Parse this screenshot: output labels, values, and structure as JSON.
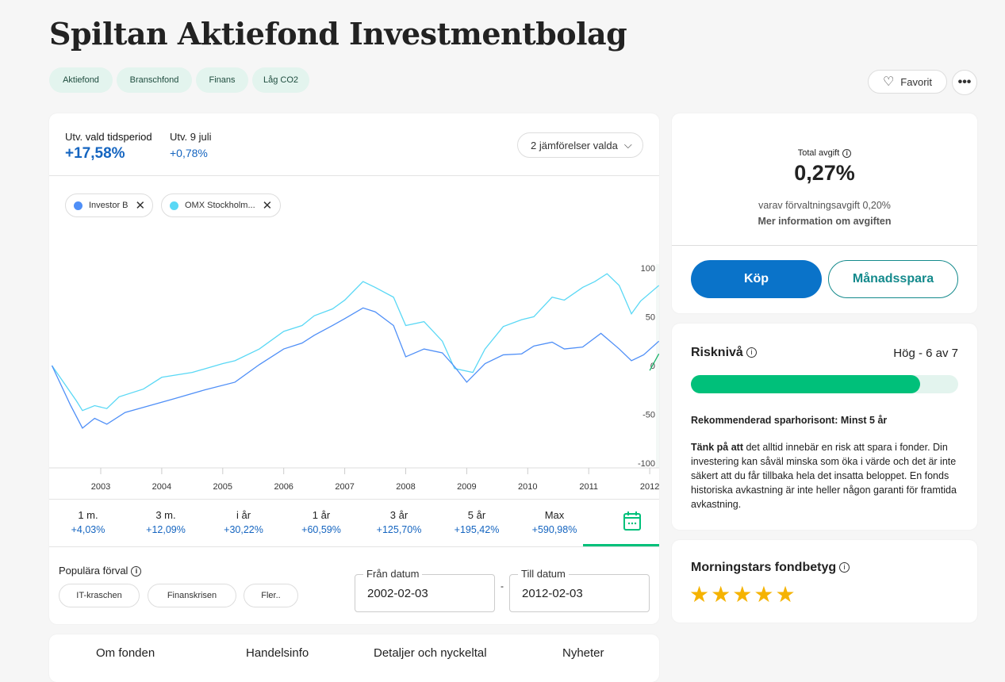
{
  "title": "Spiltan Aktiefond Investmentbolag",
  "tags": [
    "Aktiefond",
    "Branschfond",
    "Finans",
    "Låg CO2"
  ],
  "favorite_label": "Favorit",
  "chart_header": {
    "change_label_prefix": "Utv.",
    "change_label_bold": "vald tidsperiod",
    "change_value": "+17,58%",
    "day_label_prefix": "Utv.",
    "day_label_bold": "9 juli",
    "day_value": "+0,78%",
    "compare_dropdown": "2 jämförelser valda"
  },
  "comparisons": [
    {
      "name": "Investor B",
      "color": "#4f8ff7"
    },
    {
      "name": "OMX Stockholm...",
      "color": "#5ad8f5"
    }
  ],
  "chart_data": {
    "type": "line",
    "x_unit": "year",
    "xlim": [
      2002.1,
      2012.15
    ],
    "ylim": [
      -100,
      100
    ],
    "y_ticks": [
      100,
      50,
      0,
      -50,
      -100
    ],
    "x_ticks": [
      "2003",
      "2004",
      "2005",
      "2006",
      "2007",
      "2008",
      "2009",
      "2010",
      "2011",
      "2012"
    ],
    "grid": false,
    "series": [
      {
        "name": "OMX Stockholm...",
        "color": "#5ad8f5",
        "points": [
          [
            2002.2,
            0
          ],
          [
            2002.6,
            -36
          ],
          [
            2002.7,
            -46
          ],
          [
            2002.9,
            -41
          ],
          [
            2003.1,
            -44
          ],
          [
            2003.3,
            -32
          ],
          [
            2003.7,
            -24
          ],
          [
            2004.0,
            -12
          ],
          [
            2004.5,
            -7
          ],
          [
            2005.0,
            2
          ],
          [
            2005.2,
            5
          ],
          [
            2005.6,
            17
          ],
          [
            2006.0,
            35
          ],
          [
            2006.3,
            41
          ],
          [
            2006.5,
            51
          ],
          [
            2006.8,
            58
          ],
          [
            2007.0,
            67
          ],
          [
            2007.3,
            86
          ],
          [
            2007.5,
            80
          ],
          [
            2007.8,
            70
          ],
          [
            2008.0,
            41
          ],
          [
            2008.3,
            45
          ],
          [
            2008.6,
            25
          ],
          [
            2008.8,
            -3
          ],
          [
            2009.1,
            -7
          ],
          [
            2009.3,
            17
          ],
          [
            2009.6,
            40
          ],
          [
            2009.9,
            47
          ],
          [
            2010.1,
            50
          ],
          [
            2010.4,
            70
          ],
          [
            2010.6,
            67
          ],
          [
            2010.9,
            80
          ],
          [
            2011.1,
            86
          ],
          [
            2011.3,
            94
          ],
          [
            2011.5,
            82
          ],
          [
            2011.7,
            53
          ],
          [
            2011.85,
            66
          ],
          [
            2012.15,
            82
          ]
        ]
      },
      {
        "name": "Investor B",
        "color": "#4f8ff7",
        "points": [
          [
            2002.2,
            0
          ],
          [
            2002.5,
            -40
          ],
          [
            2002.7,
            -64
          ],
          [
            2002.9,
            -54
          ],
          [
            2003.1,
            -60
          ],
          [
            2003.4,
            -48
          ],
          [
            2003.8,
            -41
          ],
          [
            2004.2,
            -34
          ],
          [
            2004.7,
            -25
          ],
          [
            2005.2,
            -17
          ],
          [
            2005.6,
            1
          ],
          [
            2006.0,
            17
          ],
          [
            2006.3,
            23
          ],
          [
            2006.5,
            31
          ],
          [
            2006.8,
            41
          ],
          [
            2007.0,
            48
          ],
          [
            2007.3,
            59
          ],
          [
            2007.5,
            55
          ],
          [
            2007.8,
            41
          ],
          [
            2008.0,
            9
          ],
          [
            2008.3,
            17
          ],
          [
            2008.6,
            13
          ],
          [
            2008.8,
            -1
          ],
          [
            2009.0,
            -17
          ],
          [
            2009.3,
            2
          ],
          [
            2009.6,
            11
          ],
          [
            2009.9,
            12
          ],
          [
            2010.1,
            20
          ],
          [
            2010.4,
            24
          ],
          [
            2010.6,
            17
          ],
          [
            2010.9,
            19
          ],
          [
            2011.2,
            33
          ],
          [
            2011.5,
            17
          ],
          [
            2011.7,
            5
          ],
          [
            2011.9,
            11
          ],
          [
            2012.15,
            25
          ]
        ]
      },
      {
        "color": "#19b36b",
        "points": [
          [
            2012.0,
            -5
          ],
          [
            2012.15,
            12
          ]
        ]
      }
    ]
  },
  "periods": [
    {
      "label": "1 m.",
      "value": "+4,03%"
    },
    {
      "label": "3 m.",
      "value": "+12,09%"
    },
    {
      "label": "i år",
      "value": "+30,22%"
    },
    {
      "label": "1 år",
      "value": "+60,59%"
    },
    {
      "label": "3 år",
      "value": "+125,70%"
    },
    {
      "label": "5 år",
      "value": "+195,42%"
    },
    {
      "label": "Max",
      "value": "+590,98%"
    }
  ],
  "presets": {
    "label": "Populära förval",
    "items": [
      "IT-kraschen",
      "Finanskrisen",
      "Fler.."
    ]
  },
  "dates": {
    "from_label": "Från datum",
    "from_value": "2002-02-03",
    "to_label": "Till datum",
    "to_value": "2012-02-03",
    "separator": "-"
  },
  "bottom_tabs": [
    "Om fonden",
    "Handelsinfo",
    "Detaljer och nyckeltal",
    "Nyheter"
  ],
  "fees": {
    "label": "Total avgift",
    "value": "0,27%",
    "mgmt_prefix": "varav förvaltningsavgift",
    "mgmt_value": "0,20%",
    "more": "Mer information om avgiften"
  },
  "buy_label": "Köp",
  "monthly_label": "Månadsspara",
  "risk": {
    "title": "Risknivå",
    "level_text": "Hög - 6 av 7",
    "level": 6,
    "max": 7,
    "horizon": "Rekommenderad sparhorisont: Minst 5 år",
    "warning_bold": "Tänk på att",
    "warning": " det alltid innebär en risk att spara i fonder. Din investering kan såväl minska som öka i värde och det är inte säkert att du får tillbaka hela det insatta beloppet. En fonds historiska avkastning är inte heller någon garanti för framtida avkastning."
  },
  "rating": {
    "title": "Morningstars fondbetyg",
    "stars": 5,
    "max": 5
  },
  "colors": {
    "primary": "#0a73c9",
    "accent_green": "#00c07a",
    "teal": "#148a8c"
  }
}
